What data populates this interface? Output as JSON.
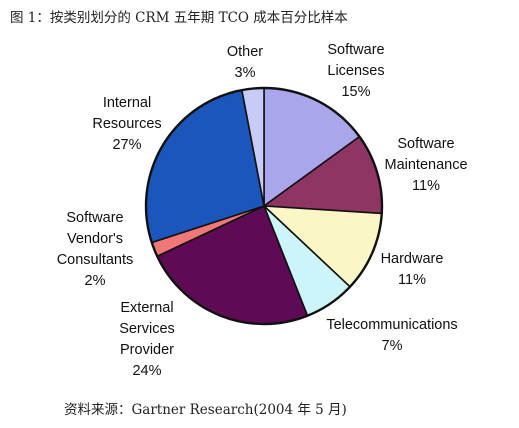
{
  "figure": {
    "title": "图 1：按类别划分的 CRM 五年期 TCO 成本百分比样本",
    "source": "资料来源：Gartner Research(2004 年 5 月)"
  },
  "chart_data": {
    "type": "pie",
    "title": "图 1：按类别划分的 CRM 五年期 TCO 成本百分比样本",
    "legend": "none",
    "slices": [
      {
        "name": "Software Licenses",
        "label_lines": [
          "Software",
          "Licenses"
        ],
        "percent_label": "15%",
        "value": 15,
        "color": "#a9a6ec"
      },
      {
        "name": "Software Maintenance",
        "label_lines": [
          "Software",
          "Maintenance"
        ],
        "percent_label": "11%",
        "value": 11,
        "color": "#8e3563"
      },
      {
        "name": "Hardware",
        "label_lines": [
          "Hardware"
        ],
        "percent_label": "11%",
        "value": 11,
        "color": "#fbf6c6"
      },
      {
        "name": "Telecommunications",
        "label_lines": [
          "Telecommunications"
        ],
        "percent_label": "7%",
        "value": 7,
        "color": "#cdf4f8"
      },
      {
        "name": "External Services Provider",
        "label_lines": [
          "External",
          "Services",
          "Provider"
        ],
        "percent_label": "24%",
        "value": 24,
        "color": "#5e0a55"
      },
      {
        "name": "Software Vendor's Consultants",
        "label_lines": [
          "Software",
          "Vendor's",
          "Consultants"
        ],
        "percent_label": "2%",
        "value": 2,
        "color": "#ef7777"
      },
      {
        "name": "Internal Resources",
        "label_lines": [
          "Internal",
          "Resources"
        ],
        "percent_label": "27%",
        "value": 27,
        "color": "#1a56bc"
      },
      {
        "name": "Other",
        "label_lines": [
          "Other"
        ],
        "percent_label": "3%",
        "value": 3,
        "color": "#c8cbf7"
      }
    ]
  }
}
